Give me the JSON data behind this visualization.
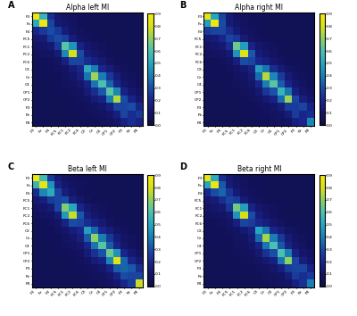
{
  "labels": [
    "F3",
    "Fz",
    "F4",
    "FC5",
    "FC1",
    "FC2",
    "FC6",
    "C3",
    "Cz",
    "C4",
    "CP1",
    "CP2",
    "P3",
    "Pz",
    "P4"
  ],
  "title_A": "Alpha left MI",
  "title_B": "Alpha right MI",
  "title_C": "Beta left MI",
  "title_D": "Beta right MI",
  "panel_labels": [
    "A",
    "B",
    "C",
    "D"
  ],
  "vmin": 0.0,
  "vmax": 0.9,
  "n": 15,
  "matrix_A": [
    [
      0.87,
      0.55,
      0.22,
      0.12,
      0.1,
      0.08,
      0.07,
      0.07,
      0.06,
      0.06,
      0.06,
      0.06,
      0.06,
      0.06,
      0.06
    ],
    [
      0.52,
      0.88,
      0.28,
      0.13,
      0.11,
      0.09,
      0.07,
      0.07,
      0.06,
      0.06,
      0.06,
      0.06,
      0.06,
      0.06,
      0.06
    ],
    [
      0.2,
      0.25,
      0.3,
      0.25,
      0.15,
      0.1,
      0.08,
      0.07,
      0.06,
      0.06,
      0.06,
      0.06,
      0.06,
      0.06,
      0.06
    ],
    [
      0.13,
      0.14,
      0.25,
      0.3,
      0.27,
      0.15,
      0.1,
      0.08,
      0.07,
      0.06,
      0.06,
      0.06,
      0.06,
      0.06,
      0.06
    ],
    [
      0.1,
      0.11,
      0.13,
      0.25,
      0.62,
      0.45,
      0.18,
      0.12,
      0.1,
      0.08,
      0.07,
      0.06,
      0.06,
      0.06,
      0.06
    ],
    [
      0.08,
      0.09,
      0.1,
      0.14,
      0.42,
      0.8,
      0.3,
      0.15,
      0.12,
      0.09,
      0.07,
      0.06,
      0.06,
      0.06,
      0.06
    ],
    [
      0.07,
      0.07,
      0.08,
      0.1,
      0.16,
      0.28,
      0.28,
      0.22,
      0.17,
      0.13,
      0.09,
      0.07,
      0.07,
      0.06,
      0.06
    ],
    [
      0.07,
      0.07,
      0.07,
      0.08,
      0.1,
      0.14,
      0.2,
      0.52,
      0.4,
      0.2,
      0.15,
      0.1,
      0.08,
      0.07,
      0.06
    ],
    [
      0.06,
      0.07,
      0.07,
      0.07,
      0.09,
      0.11,
      0.16,
      0.38,
      0.72,
      0.4,
      0.25,
      0.15,
      0.1,
      0.08,
      0.07
    ],
    [
      0.06,
      0.06,
      0.07,
      0.07,
      0.08,
      0.09,
      0.12,
      0.18,
      0.38,
      0.6,
      0.35,
      0.2,
      0.12,
      0.09,
      0.07
    ],
    [
      0.06,
      0.06,
      0.06,
      0.07,
      0.07,
      0.08,
      0.09,
      0.14,
      0.22,
      0.32,
      0.62,
      0.42,
      0.18,
      0.12,
      0.09
    ],
    [
      0.06,
      0.06,
      0.06,
      0.06,
      0.07,
      0.07,
      0.08,
      0.1,
      0.14,
      0.18,
      0.4,
      0.75,
      0.3,
      0.18,
      0.12
    ],
    [
      0.06,
      0.06,
      0.06,
      0.06,
      0.06,
      0.07,
      0.07,
      0.08,
      0.09,
      0.11,
      0.16,
      0.28,
      0.28,
      0.3,
      0.2
    ],
    [
      0.06,
      0.06,
      0.06,
      0.06,
      0.06,
      0.06,
      0.07,
      0.07,
      0.08,
      0.09,
      0.11,
      0.16,
      0.28,
      0.22,
      0.25
    ],
    [
      0.06,
      0.06,
      0.06,
      0.06,
      0.06,
      0.06,
      0.06,
      0.07,
      0.07,
      0.08,
      0.09,
      0.11,
      0.18,
      0.22,
      0.18
    ]
  ],
  "matrix_B": [
    [
      0.85,
      0.5,
      0.28,
      0.14,
      0.1,
      0.08,
      0.07,
      0.07,
      0.06,
      0.06,
      0.06,
      0.06,
      0.06,
      0.06,
      0.06
    ],
    [
      0.48,
      0.88,
      0.3,
      0.14,
      0.11,
      0.09,
      0.07,
      0.07,
      0.06,
      0.06,
      0.06,
      0.06,
      0.06,
      0.06,
      0.06
    ],
    [
      0.25,
      0.28,
      0.28,
      0.22,
      0.14,
      0.1,
      0.08,
      0.07,
      0.06,
      0.06,
      0.06,
      0.06,
      0.06,
      0.06,
      0.06
    ],
    [
      0.13,
      0.14,
      0.2,
      0.28,
      0.25,
      0.14,
      0.1,
      0.08,
      0.07,
      0.06,
      0.06,
      0.06,
      0.06,
      0.06,
      0.06
    ],
    [
      0.1,
      0.11,
      0.13,
      0.22,
      0.65,
      0.48,
      0.18,
      0.12,
      0.1,
      0.08,
      0.07,
      0.06,
      0.06,
      0.06,
      0.06
    ],
    [
      0.08,
      0.09,
      0.1,
      0.13,
      0.45,
      0.82,
      0.32,
      0.15,
      0.11,
      0.09,
      0.07,
      0.06,
      0.06,
      0.06,
      0.06
    ],
    [
      0.07,
      0.07,
      0.08,
      0.1,
      0.16,
      0.3,
      0.28,
      0.2,
      0.16,
      0.12,
      0.09,
      0.07,
      0.07,
      0.06,
      0.06
    ],
    [
      0.07,
      0.07,
      0.07,
      0.08,
      0.1,
      0.13,
      0.18,
      0.48,
      0.38,
      0.22,
      0.14,
      0.1,
      0.08,
      0.07,
      0.06
    ],
    [
      0.06,
      0.07,
      0.07,
      0.07,
      0.09,
      0.1,
      0.14,
      0.36,
      0.75,
      0.42,
      0.26,
      0.14,
      0.1,
      0.08,
      0.07
    ],
    [
      0.06,
      0.06,
      0.07,
      0.07,
      0.08,
      0.09,
      0.11,
      0.2,
      0.4,
      0.62,
      0.33,
      0.19,
      0.12,
      0.09,
      0.07
    ],
    [
      0.06,
      0.06,
      0.06,
      0.07,
      0.07,
      0.08,
      0.09,
      0.13,
      0.24,
      0.31,
      0.55,
      0.38,
      0.17,
      0.11,
      0.09
    ],
    [
      0.06,
      0.06,
      0.06,
      0.06,
      0.07,
      0.07,
      0.08,
      0.1,
      0.13,
      0.18,
      0.36,
      0.72,
      0.28,
      0.16,
      0.11
    ],
    [
      0.06,
      0.06,
      0.06,
      0.06,
      0.06,
      0.07,
      0.07,
      0.08,
      0.09,
      0.11,
      0.15,
      0.26,
      0.26,
      0.28,
      0.18
    ],
    [
      0.06,
      0.06,
      0.06,
      0.06,
      0.06,
      0.06,
      0.07,
      0.07,
      0.08,
      0.09,
      0.1,
      0.15,
      0.26,
      0.2,
      0.22
    ],
    [
      0.06,
      0.06,
      0.06,
      0.06,
      0.06,
      0.06,
      0.06,
      0.07,
      0.07,
      0.08,
      0.09,
      0.1,
      0.17,
      0.2,
      0.42
    ]
  ],
  "matrix_C": [
    [
      0.88,
      0.58,
      0.25,
      0.14,
      0.1,
      0.08,
      0.07,
      0.07,
      0.06,
      0.06,
      0.06,
      0.06,
      0.06,
      0.06,
      0.06
    ],
    [
      0.55,
      0.85,
      0.45,
      0.18,
      0.12,
      0.09,
      0.08,
      0.07,
      0.06,
      0.06,
      0.06,
      0.06,
      0.06,
      0.06,
      0.06
    ],
    [
      0.22,
      0.42,
      0.52,
      0.28,
      0.16,
      0.11,
      0.08,
      0.07,
      0.06,
      0.06,
      0.06,
      0.06,
      0.06,
      0.06,
      0.06
    ],
    [
      0.13,
      0.16,
      0.26,
      0.28,
      0.3,
      0.16,
      0.11,
      0.08,
      0.07,
      0.06,
      0.06,
      0.06,
      0.06,
      0.06,
      0.06
    ],
    [
      0.1,
      0.11,
      0.14,
      0.28,
      0.68,
      0.5,
      0.2,
      0.13,
      0.1,
      0.08,
      0.07,
      0.06,
      0.06,
      0.06,
      0.06
    ],
    [
      0.08,
      0.09,
      0.1,
      0.15,
      0.47,
      0.78,
      0.32,
      0.16,
      0.12,
      0.09,
      0.07,
      0.06,
      0.06,
      0.06,
      0.06
    ],
    [
      0.07,
      0.07,
      0.08,
      0.1,
      0.18,
      0.3,
      0.28,
      0.22,
      0.17,
      0.13,
      0.09,
      0.07,
      0.07,
      0.06,
      0.06
    ],
    [
      0.07,
      0.07,
      0.07,
      0.08,
      0.11,
      0.15,
      0.2,
      0.48,
      0.35,
      0.2,
      0.15,
      0.1,
      0.08,
      0.07,
      0.06
    ],
    [
      0.06,
      0.07,
      0.07,
      0.07,
      0.09,
      0.11,
      0.16,
      0.33,
      0.7,
      0.4,
      0.25,
      0.15,
      0.1,
      0.08,
      0.07
    ],
    [
      0.06,
      0.06,
      0.07,
      0.07,
      0.08,
      0.09,
      0.12,
      0.19,
      0.38,
      0.62,
      0.33,
      0.19,
      0.12,
      0.09,
      0.07
    ],
    [
      0.06,
      0.06,
      0.06,
      0.07,
      0.07,
      0.08,
      0.09,
      0.14,
      0.23,
      0.31,
      0.65,
      0.45,
      0.2,
      0.13,
      0.09
    ],
    [
      0.06,
      0.06,
      0.06,
      0.06,
      0.07,
      0.07,
      0.08,
      0.1,
      0.14,
      0.18,
      0.42,
      0.82,
      0.35,
      0.2,
      0.13
    ],
    [
      0.06,
      0.06,
      0.06,
      0.06,
      0.06,
      0.07,
      0.07,
      0.08,
      0.09,
      0.11,
      0.18,
      0.33,
      0.35,
      0.32,
      0.22
    ],
    [
      0.06,
      0.06,
      0.06,
      0.06,
      0.06,
      0.06,
      0.07,
      0.07,
      0.08,
      0.09,
      0.12,
      0.18,
      0.3,
      0.28,
      0.28
    ],
    [
      0.06,
      0.06,
      0.06,
      0.06,
      0.06,
      0.06,
      0.06,
      0.07,
      0.07,
      0.08,
      0.09,
      0.12,
      0.2,
      0.26,
      0.78
    ]
  ],
  "matrix_D": [
    [
      0.85,
      0.52,
      0.22,
      0.13,
      0.1,
      0.08,
      0.07,
      0.07,
      0.06,
      0.06,
      0.06,
      0.06,
      0.06,
      0.06,
      0.06
    ],
    [
      0.5,
      0.87,
      0.32,
      0.14,
      0.11,
      0.09,
      0.07,
      0.07,
      0.06,
      0.06,
      0.06,
      0.06,
      0.06,
      0.06,
      0.06
    ],
    [
      0.2,
      0.3,
      0.35,
      0.24,
      0.14,
      0.1,
      0.08,
      0.07,
      0.06,
      0.06,
      0.06,
      0.06,
      0.06,
      0.06,
      0.06
    ],
    [
      0.12,
      0.14,
      0.22,
      0.28,
      0.26,
      0.14,
      0.1,
      0.08,
      0.07,
      0.06,
      0.06,
      0.06,
      0.06,
      0.06,
      0.06
    ],
    [
      0.1,
      0.11,
      0.13,
      0.24,
      0.66,
      0.48,
      0.18,
      0.12,
      0.1,
      0.08,
      0.07,
      0.06,
      0.06,
      0.06,
      0.06
    ],
    [
      0.08,
      0.09,
      0.1,
      0.13,
      0.45,
      0.8,
      0.3,
      0.15,
      0.11,
      0.09,
      0.07,
      0.06,
      0.06,
      0.06,
      0.06
    ],
    [
      0.07,
      0.07,
      0.08,
      0.1,
      0.16,
      0.28,
      0.26,
      0.2,
      0.16,
      0.12,
      0.09,
      0.07,
      0.07,
      0.06,
      0.06
    ],
    [
      0.07,
      0.07,
      0.07,
      0.08,
      0.1,
      0.13,
      0.18,
      0.5,
      0.38,
      0.2,
      0.14,
      0.1,
      0.08,
      0.07,
      0.06
    ],
    [
      0.06,
      0.07,
      0.07,
      0.07,
      0.09,
      0.1,
      0.14,
      0.36,
      0.73,
      0.4,
      0.25,
      0.14,
      0.1,
      0.08,
      0.07
    ],
    [
      0.06,
      0.06,
      0.07,
      0.07,
      0.08,
      0.09,
      0.11,
      0.18,
      0.38,
      0.6,
      0.32,
      0.18,
      0.12,
      0.09,
      0.07
    ],
    [
      0.06,
      0.06,
      0.06,
      0.07,
      0.07,
      0.08,
      0.09,
      0.13,
      0.23,
      0.3,
      0.6,
      0.4,
      0.18,
      0.11,
      0.09
    ],
    [
      0.06,
      0.06,
      0.06,
      0.06,
      0.07,
      0.07,
      0.08,
      0.1,
      0.13,
      0.17,
      0.38,
      0.7,
      0.28,
      0.16,
      0.11
    ],
    [
      0.06,
      0.06,
      0.06,
      0.06,
      0.06,
      0.07,
      0.07,
      0.08,
      0.09,
      0.11,
      0.16,
      0.26,
      0.28,
      0.28,
      0.18
    ],
    [
      0.06,
      0.06,
      0.06,
      0.06,
      0.06,
      0.06,
      0.07,
      0.07,
      0.08,
      0.09,
      0.1,
      0.15,
      0.26,
      0.22,
      0.25
    ],
    [
      0.06,
      0.06,
      0.06,
      0.06,
      0.06,
      0.06,
      0.06,
      0.07,
      0.07,
      0.08,
      0.09,
      0.1,
      0.17,
      0.23,
      0.4
    ]
  ],
  "colorbar_ticks": [
    0.0,
    0.1,
    0.2,
    0.3,
    0.4,
    0.5,
    0.6,
    0.7,
    0.8,
    0.9
  ]
}
